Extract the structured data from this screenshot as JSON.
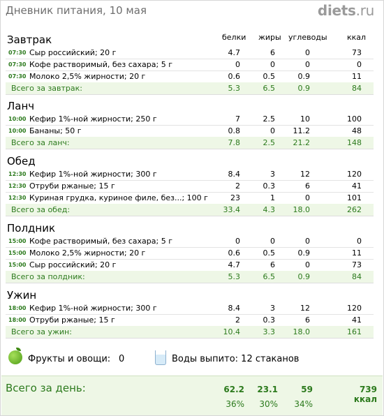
{
  "header": {
    "title": "Дневник питания, 10 мая",
    "logo_main": "diets",
    "logo_dot": ".",
    "logo_tld": "ru"
  },
  "columns": [
    "белки",
    "жиры",
    "углеводы",
    "ккал"
  ],
  "meals": [
    {
      "name": "Завтрак",
      "items": [
        {
          "time": "07:30",
          "name": "Сыр российский; 20 г",
          "p": "4.7",
          "f": "6",
          "c": "0",
          "k": "73"
        },
        {
          "time": "07:30",
          "name": "Кофе растворимый, без сахара; 5 г",
          "p": "0",
          "f": "0",
          "c": "0",
          "k": "0"
        },
        {
          "time": "07:30",
          "name": "Молоко 2,5% жирности; 20 г",
          "p": "0.6",
          "f": "0.5",
          "c": "0.9",
          "k": "11"
        }
      ],
      "total": {
        "label": "Всего за завтрак:",
        "p": "5.3",
        "f": "6.5",
        "c": "0.9",
        "k": "84"
      }
    },
    {
      "name": "Ланч",
      "items": [
        {
          "time": "10:00",
          "name": "Кефир 1%-ной жирности; 250 г",
          "p": "7",
          "f": "2.5",
          "c": "10",
          "k": "100"
        },
        {
          "time": "10:00",
          "name": "Бананы; 50 г",
          "p": "0.8",
          "f": "0",
          "c": "11.2",
          "k": "48"
        }
      ],
      "total": {
        "label": "Всего за ланч:",
        "p": "7.8",
        "f": "2.5",
        "c": "21.2",
        "k": "148"
      }
    },
    {
      "name": "Обед",
      "items": [
        {
          "time": "12:30",
          "name": "Кефир 1%-ной жирности; 300 г",
          "p": "8.4",
          "f": "3",
          "c": "12",
          "k": "120"
        },
        {
          "time": "12:30",
          "name": "Отруби ржаные; 15 г",
          "p": "2",
          "f": "0.3",
          "c": "6",
          "k": "41"
        },
        {
          "time": "12:30",
          "name": "Куриная грудка, куриное филе, без...; 100 г",
          "p": "23",
          "f": "1",
          "c": "0",
          "k": "101"
        }
      ],
      "total": {
        "label": "Всего за обед:",
        "p": "33.4",
        "f": "4.3",
        "c": "18.0",
        "k": "262"
      }
    },
    {
      "name": "Полдник",
      "items": [
        {
          "time": "15:00",
          "name": "Кофе растворимый, без сахара; 5 г",
          "p": "0",
          "f": "0",
          "c": "0",
          "k": "0"
        },
        {
          "time": "15:00",
          "name": "Молоко 2,5% жирности; 20 г",
          "p": "0.6",
          "f": "0.5",
          "c": "0.9",
          "k": "11"
        },
        {
          "time": "15:00",
          "name": "Сыр российский; 20 г",
          "p": "4.7",
          "f": "6",
          "c": "0",
          "k": "73"
        }
      ],
      "total": {
        "label": "Всего за полдник:",
        "p": "5.3",
        "f": "6.5",
        "c": "0.9",
        "k": "84"
      }
    },
    {
      "name": "Ужин",
      "items": [
        {
          "time": "18:00",
          "name": "Кефир 1%-ной жирности; 300 г",
          "p": "8.4",
          "f": "3",
          "c": "12",
          "k": "120"
        },
        {
          "time": "18:00",
          "name": "Отруби ржаные; 15 г",
          "p": "2",
          "f": "0.3",
          "c": "6",
          "k": "41"
        }
      ],
      "total": {
        "label": "Всего за ужин:",
        "p": "10.4",
        "f": "3.3",
        "c": "18.0",
        "k": "161"
      }
    }
  ],
  "extras": {
    "fruits_label": "Фрукты и овощи:",
    "fruits_value": "0",
    "water_label": "Воды выпито: 12 стаканов",
    "fruit_icon": "apple-icon",
    "water_icon": "glass-icon"
  },
  "day_total": {
    "label": "Всего за день:",
    "p": "62.2",
    "f": "23.1",
    "c": "59",
    "k": "739 ккал",
    "p_pct": "36%",
    "f_pct": "30%",
    "c_pct": "34%"
  },
  "colors": {
    "accent_green": "#2c7a1d",
    "total_bg": "#eef7e6"
  }
}
